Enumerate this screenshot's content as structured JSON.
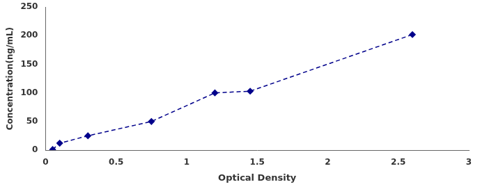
{
  "chart_data": {
    "type": "line",
    "x": [
      0.05,
      0.1,
      0.3,
      0.75,
      1.2,
      1.45,
      2.6
    ],
    "values": [
      1,
      12,
      25,
      50,
      100,
      103,
      202
    ],
    "color": "#00008B",
    "marker": "diamond",
    "line_style": "dashed",
    "xlabel": "Optical Density",
    "ylabel": "Concentration(ng/mL)",
    "xlim": [
      0,
      3
    ],
    "xticks": [
      0,
      0.5,
      1,
      1.5,
      2,
      2.5,
      3
    ],
    "ylim": [
      0,
      250
    ],
    "yticks": [
      0,
      50,
      100,
      150,
      200,
      250
    ],
    "grid": false
  }
}
